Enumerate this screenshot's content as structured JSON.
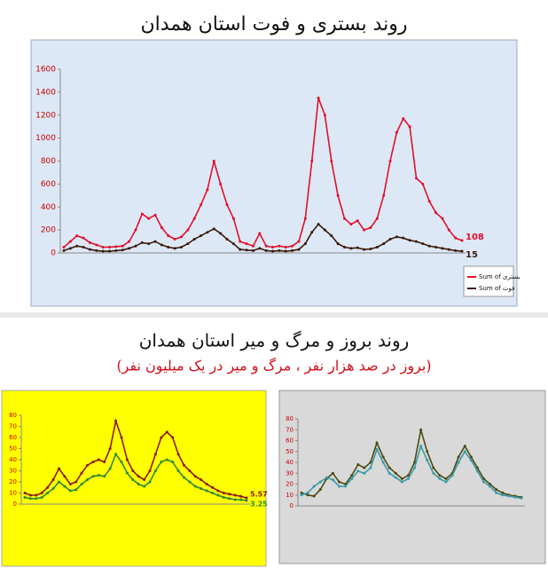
{
  "headings": {
    "title": "روند بروز و مرگ و میر استان همدان",
    "subtitle": "(بروز در صد هزار نفر ، مرگ و میر در یک میلیون نفر)"
  },
  "chart_data": [
    {
      "type": "line",
      "title": "روند بستری و فوت استان همدان",
      "ylim": [
        0,
        1600
      ],
      "yticks": [
        0,
        200,
        400,
        600,
        800,
        1000,
        1200,
        1400,
        1600
      ],
      "legend": "bottom-right",
      "end_labels": true,
      "series": [
        {
          "name": "Sum of بستری",
          "color": "#e0102a",
          "values": [
            50,
            100,
            150,
            130,
            90,
            70,
            50,
            50,
            55,
            60,
            100,
            200,
            340,
            300,
            330,
            220,
            150,
            120,
            140,
            200,
            300,
            420,
            550,
            800,
            600,
            420,
            300,
            100,
            80,
            60,
            170,
            60,
            50,
            60,
            50,
            60,
            100,
            300,
            800,
            1350,
            1200,
            800,
            500,
            300,
            250,
            280,
            200,
            220,
            300,
            500,
            800,
            1050,
            1170,
            1100,
            650,
            600,
            450,
            350,
            300,
            200,
            130,
            108
          ]
        },
        {
          "name": "Sum of فوت",
          "color": "#3a1a0a",
          "values": [
            20,
            40,
            60,
            50,
            30,
            20,
            15,
            15,
            20,
            25,
            40,
            60,
            90,
            80,
            100,
            70,
            50,
            40,
            50,
            80,
            120,
            150,
            180,
            210,
            170,
            120,
            80,
            30,
            25,
            20,
            40,
            20,
            15,
            20,
            15,
            20,
            30,
            80,
            180,
            250,
            200,
            150,
            80,
            50,
            40,
            45,
            30,
            35,
            50,
            80,
            120,
            140,
            130,
            110,
            100,
            80,
            60,
            50,
            40,
            30,
            20,
            15
          ]
        }
      ]
    },
    {
      "type": "line",
      "ylim": [
        0,
        80
      ],
      "yticks": [
        0,
        10,
        20,
        30,
        40,
        50,
        60,
        70,
        80
      ],
      "end_labels": true,
      "series": [
        {
          "color": "#8b1a1a",
          "values": [
            10,
            8,
            8,
            10,
            15,
            22,
            32,
            25,
            18,
            20,
            28,
            35,
            38,
            40,
            38,
            50,
            75,
            60,
            40,
            30,
            25,
            22,
            30,
            45,
            60,
            65,
            60,
            45,
            35,
            30,
            25,
            22,
            18,
            15,
            12,
            10,
            9,
            8,
            7,
            5.57
          ]
        },
        {
          "color": "#2e8b3a",
          "values": [
            6,
            5,
            5,
            6,
            10,
            14,
            20,
            16,
            12,
            13,
            18,
            22,
            25,
            26,
            25,
            32,
            45,
            38,
            28,
            22,
            18,
            16,
            20,
            30,
            38,
            40,
            38,
            30,
            24,
            20,
            16,
            14,
            12,
            10,
            8,
            6,
            5,
            4,
            4,
            3.25
          ]
        }
      ]
    },
    {
      "type": "line",
      "ylim": [
        0,
        80
      ],
      "yticks": [
        0,
        10,
        20,
        30,
        40,
        50,
        60,
        70,
        80
      ],
      "end_labels": false,
      "series": [
        {
          "color": "#4a4a10",
          "values": [
            12,
            10,
            9,
            15,
            25,
            30,
            22,
            20,
            28,
            38,
            35,
            40,
            58,
            45,
            35,
            30,
            25,
            28,
            40,
            70,
            50,
            35,
            28,
            25,
            30,
            45,
            55,
            45,
            35,
            25,
            20,
            15,
            12,
            10,
            9,
            8
          ]
        },
        {
          "color": "#3a9aa8",
          "values": [
            10,
            12,
            18,
            22,
            26,
            24,
            18,
            18,
            25,
            32,
            30,
            35,
            52,
            40,
            30,
            26,
            22,
            25,
            35,
            55,
            42,
            30,
            25,
            22,
            28,
            40,
            50,
            42,
            32,
            22,
            18,
            12,
            10,
            9,
            8,
            7
          ]
        }
      ]
    }
  ]
}
